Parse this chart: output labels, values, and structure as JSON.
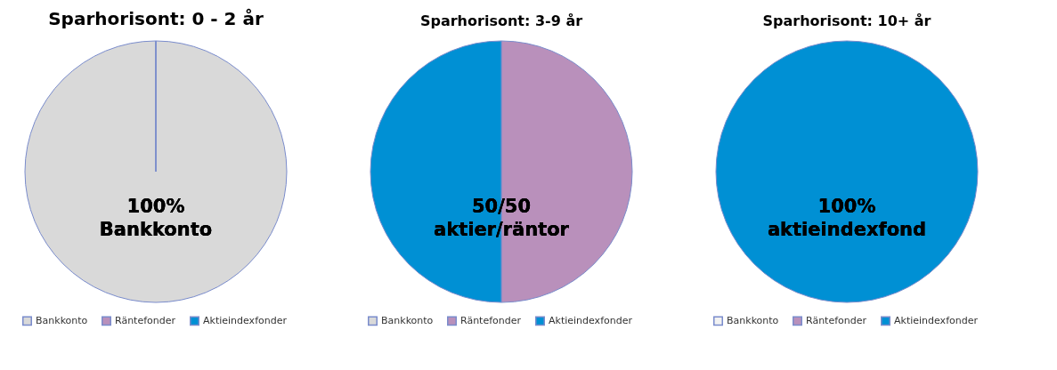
{
  "chart_data": [
    {
      "type": "pie",
      "title": "Sparhorisont: 0 - 2 år",
      "categories": [
        "Bankkonto",
        "Räntefonder",
        "Aktieindexfonder"
      ],
      "values": [
        100,
        0,
        0
      ],
      "colors": [
        "#d9d9d9",
        "#b990bb",
        "#0090d4"
      ],
      "annotations": [
        "100%\nBankkonto"
      ],
      "legend": "bottom"
    },
    {
      "type": "pie",
      "title": "Sparhorisont: 3-9 år",
      "categories": [
        "Bankkonto",
        "Räntefonder",
        "Aktieindexfonder"
      ],
      "values": [
        0,
        50,
        50
      ],
      "colors": [
        "#d9d9d9",
        "#b990bb",
        "#0090d4"
      ],
      "annotations": [
        "50/50\naktier/räntor"
      ],
      "legend": "bottom"
    },
    {
      "type": "pie",
      "title": "Sparhorisont: 10+ år",
      "categories": [
        "Bankkonto",
        "Räntefonder",
        "Aktieindexfonder"
      ],
      "values": [
        0,
        0,
        100
      ],
      "colors": [
        "#f2f2f2",
        "#b990bb",
        "#0090d4"
      ],
      "annotations": [
        "100%\naktieindexfond"
      ],
      "legend": "bottom"
    }
  ]
}
